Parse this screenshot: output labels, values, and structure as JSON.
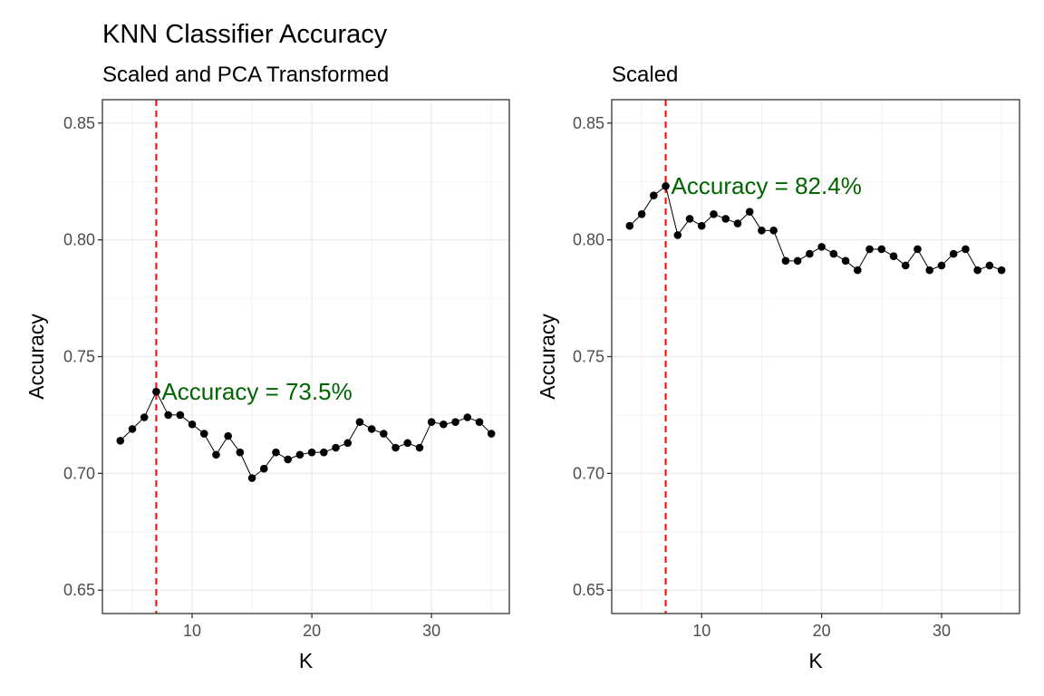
{
  "title": "KNN Classifier Accuracy",
  "colors": {
    "annotation": "#006400",
    "vline": "#ff0000",
    "points": "#000000"
  },
  "chart_data": [
    {
      "type": "line",
      "subtitle": "Scaled and PCA Transformed",
      "xlabel": "K",
      "ylabel": "Accuracy",
      "xlim": [
        2.5,
        36.5
      ],
      "ylim": [
        0.64,
        0.86
      ],
      "x_ticks": [
        10,
        20,
        30
      ],
      "y_ticks": [
        0.65,
        0.7,
        0.75,
        0.8,
        0.85
      ],
      "grid": true,
      "best_k": 7,
      "annotation": "Accuracy = 73.5%",
      "annotation_x": 7,
      "annotation_y": 0.7355,
      "x": [
        4,
        5,
        6,
        7,
        8,
        9,
        10,
        11,
        12,
        13,
        14,
        15,
        16,
        17,
        18,
        19,
        20,
        21,
        22,
        23,
        24,
        25,
        26,
        27,
        28,
        29,
        30,
        31,
        32,
        33,
        34,
        35
      ],
      "y": [
        0.714,
        0.719,
        0.724,
        0.735,
        0.725,
        0.725,
        0.721,
        0.717,
        0.708,
        0.716,
        0.709,
        0.698,
        0.702,
        0.709,
        0.706,
        0.708,
        0.709,
        0.709,
        0.711,
        0.713,
        0.722,
        0.719,
        0.717,
        0.711,
        0.713,
        0.711,
        0.722,
        0.721,
        0.722,
        0.724,
        0.722,
        0.717
      ]
    },
    {
      "type": "line",
      "subtitle": "Scaled",
      "xlabel": "K",
      "ylabel": "Accuracy",
      "xlim": [
        2.5,
        36.5
      ],
      "ylim": [
        0.64,
        0.86
      ],
      "x_ticks": [
        10,
        20,
        30
      ],
      "y_ticks": [
        0.65,
        0.7,
        0.75,
        0.8,
        0.85
      ],
      "grid": true,
      "best_k": 7,
      "annotation": "Accuracy = 82.4%",
      "annotation_x": 7,
      "annotation_y": 0.8235,
      "x": [
        4,
        5,
        6,
        7,
        8,
        9,
        10,
        11,
        12,
        13,
        14,
        15,
        16,
        17,
        18,
        19,
        20,
        21,
        22,
        23,
        24,
        25,
        26,
        27,
        28,
        29,
        30,
        31,
        32,
        33,
        34,
        35
      ],
      "y": [
        0.806,
        0.811,
        0.819,
        0.823,
        0.802,
        0.809,
        0.806,
        0.811,
        0.809,
        0.807,
        0.812,
        0.804,
        0.804,
        0.791,
        0.791,
        0.794,
        0.797,
        0.794,
        0.791,
        0.787,
        0.796,
        0.796,
        0.793,
        0.789,
        0.796,
        0.787,
        0.789,
        0.794,
        0.796,
        0.787,
        0.789,
        0.787
      ]
    }
  ]
}
